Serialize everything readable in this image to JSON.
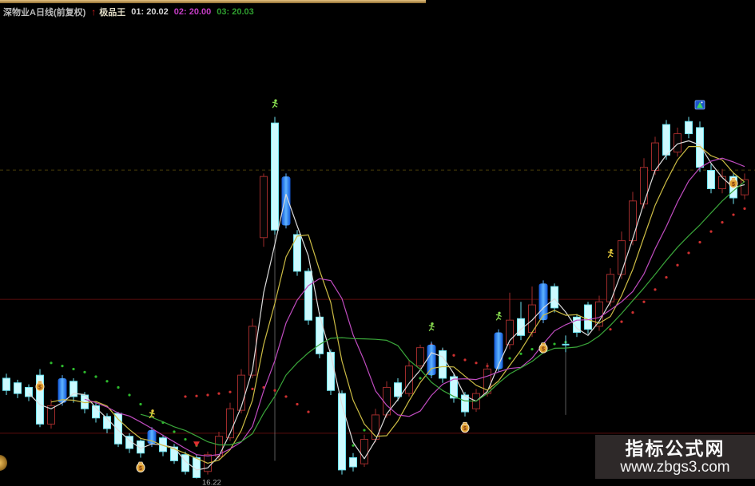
{
  "header": {
    "title": "深物业A日线(前复权)",
    "arrow_icon": "↑",
    "indicator_name": "极品王",
    "params": [
      {
        "label": "01: 20.02",
        "color": "#d6d6d6"
      },
      {
        "label": "02: 20.00",
        "color": "#c43cc4"
      },
      {
        "label": "03: 20.03",
        "color": "#2f9e2f"
      }
    ]
  },
  "watermark": {
    "line1": "指标公式网",
    "line2": "www.zbgs3.com",
    "bg": "#2e2929",
    "text_color": "#fafafa"
  },
  "chart_data": {
    "type": "candlestick",
    "title": "深物业A 日线 K线图 (前复权) 带极品王指标",
    "price_axis": {
      "min": 16.0,
      "max": 28.6,
      "low_label": "16.22"
    },
    "candle_fields": [
      "style",
      "open",
      "close",
      "high",
      "low",
      "icons"
    ],
    "candles": [
      [
        "cyan",
        19.5,
        19.1,
        19.65,
        18.95
      ],
      [
        "cyan",
        19.35,
        19.0,
        19.45,
        18.85
      ],
      [
        "cyan",
        19.2,
        18.9,
        19.3,
        18.75
      ],
      [
        "cyan",
        19.6,
        18.0,
        19.8,
        17.9,
        [
          [
            "moneybag",
            19.25
          ]
        ]
      ],
      [
        "red",
        18.0,
        18.6,
        18.8,
        17.85
      ],
      [
        "blue",
        18.7,
        19.5,
        19.6,
        18.6
      ],
      [
        "cyan",
        19.4,
        18.9,
        19.5,
        18.7
      ],
      [
        "cyan",
        18.95,
        18.5,
        19.05,
        18.35
      ],
      [
        "cyan",
        18.6,
        18.2,
        18.7,
        18.05
      ],
      [
        "cyan",
        18.25,
        17.85,
        18.35,
        17.7
      ],
      [
        "cyan",
        18.35,
        17.35,
        18.4,
        17.25
      ],
      [
        "cyan",
        17.6,
        17.2,
        17.7,
        17.05
      ],
      [
        "cyan",
        17.45,
        17.05,
        17.5,
        16.9,
        [
          [
            "moneybag",
            16.6
          ]
        ]
      ],
      [
        "blue",
        17.35,
        17.8,
        17.9,
        17.25,
        [
          [
            "runner-gold",
            18.25
          ]
        ]
      ],
      [
        "cyan",
        17.55,
        17.1,
        17.65,
        16.95
      ],
      [
        "cyan",
        17.25,
        16.8,
        17.35,
        16.7
      ],
      [
        "cyan",
        17.0,
        16.45,
        17.1,
        16.35
      ],
      [
        "cyan",
        16.9,
        16.25,
        17.0,
        16.22,
        [
          [
            "arrow-red",
            17.3
          ]
        ]
      ],
      [
        "red",
        16.45,
        17.0,
        17.1,
        16.35
      ],
      [
        "red",
        16.95,
        17.6,
        17.75,
        16.85
      ],
      [
        "red",
        17.55,
        18.5,
        18.7,
        17.45
      ],
      [
        "red",
        18.45,
        19.6,
        19.8,
        18.35
      ],
      [
        "red",
        19.6,
        21.2,
        21.45,
        19.5
      ],
      [
        "red",
        24.1,
        26.1,
        26.2,
        23.8
      ],
      [
        "cyan",
        27.85,
        24.35,
        28.05,
        24.2,
        [
          [
            "runner-green",
            28.4
          ]
        ]
      ],
      [
        "blue",
        24.5,
        26.1,
        26.2,
        24.4
      ],
      [
        "cyan",
        24.2,
        23.0,
        24.35,
        22.85
      ],
      [
        "cyan",
        23.0,
        21.4,
        23.1,
        21.25
      ],
      [
        "cyan",
        21.5,
        20.3,
        21.65,
        20.15
      ],
      [
        "cyan",
        20.35,
        19.1,
        20.45,
        18.95
      ],
      [
        "cyan",
        19.0,
        16.5,
        19.1,
        16.35
      ],
      [
        "cyan",
        16.9,
        16.6,
        17.05,
        16.45
      ],
      [
        "red",
        16.7,
        17.5,
        17.65,
        16.6
      ],
      [
        "red",
        17.5,
        18.3,
        18.5,
        17.4
      ],
      [
        "red",
        18.3,
        19.2,
        19.4,
        18.2
      ],
      [
        "cyan",
        19.35,
        18.9,
        19.5,
        18.75
      ],
      [
        "red",
        19.0,
        19.9,
        20.1,
        18.9
      ],
      [
        "red",
        19.9,
        20.5,
        20.6,
        19.8
      ],
      [
        "blue",
        19.6,
        20.6,
        20.7,
        19.5,
        [
          [
            "runner-green",
            21.1
          ]
        ]
      ],
      [
        "cyan",
        20.4,
        19.5,
        20.5,
        19.35
      ],
      [
        "cyan",
        19.55,
        18.85,
        19.65,
        18.7
      ],
      [
        "cyan",
        18.95,
        18.4,
        19.05,
        18.25,
        [
          [
            "moneybag",
            17.9
          ]
        ]
      ],
      [
        "red",
        18.5,
        19.0,
        19.15,
        18.4
      ],
      [
        "red",
        19.0,
        19.8,
        20.0,
        18.9
      ],
      [
        "blue",
        19.8,
        21.0,
        21.1,
        19.7,
        [
          [
            "runner-green",
            21.45
          ]
        ]
      ],
      [
        "red",
        20.6,
        21.4,
        22.3,
        20.45
      ],
      [
        "cyan",
        21.45,
        20.9,
        22.0,
        20.75
      ],
      [
        "red",
        21.0,
        21.9,
        22.5,
        20.85
      ],
      [
        "blue",
        21.4,
        22.6,
        22.7,
        21.3,
        [
          [
            "moneybag",
            20.5
          ]
        ]
      ],
      [
        "cyan",
        22.5,
        21.8,
        22.6,
        21.65
      ],
      [
        "doji",
        20.6,
        20.6,
        20.9,
        20.35
      ],
      [
        "cyan",
        21.5,
        21.0,
        21.6,
        20.85
      ],
      [
        "cyan",
        21.9,
        21.1,
        22.0,
        20.95
      ],
      [
        "red",
        21.2,
        22.0,
        22.2,
        21.05
      ],
      [
        "red",
        22.0,
        22.9,
        23.1,
        21.85,
        [
          [
            "runner-gold",
            23.5
          ]
        ]
      ],
      [
        "red",
        22.9,
        24.0,
        24.3,
        22.75
      ],
      [
        "red",
        24.0,
        25.3,
        25.6,
        23.85
      ],
      [
        "red",
        25.2,
        26.4,
        26.7,
        25.05
      ],
      [
        "red",
        26.3,
        27.2,
        27.4,
        26.15
      ],
      [
        "cyan",
        27.8,
        26.8,
        27.95,
        26.65
      ],
      [
        "red",
        26.9,
        27.5,
        27.7,
        26.75
      ],
      [
        "cyan",
        27.9,
        27.5,
        28.05,
        27.35
      ],
      [
        "cyan",
        27.7,
        26.4,
        27.9,
        26.25,
        [
          [
            "flag-box",
            28.3
          ]
        ]
      ],
      [
        "cyan",
        26.3,
        25.7,
        26.5,
        25.55
      ],
      [
        "red",
        25.7,
        26.1,
        26.35,
        25.55
      ],
      [
        "cyan",
        26.1,
        25.4,
        26.2,
        25.2,
        [
          [
            "moneybag",
            25.9
          ]
        ]
      ],
      [
        "red",
        25.5,
        26.0,
        26.2,
        25.35
      ]
    ],
    "ma_lines": [
      {
        "name": "MA3",
        "period": 3,
        "color": "#dcdcdc"
      },
      {
        "name": "MA5",
        "period": 5,
        "color": "#cdbd45"
      },
      {
        "name": "MA8",
        "period": 8,
        "color": "#c04cc0"
      },
      {
        "name": "MA13",
        "period": 13,
        "color": "#3aa63a"
      }
    ],
    "dot_runs": [
      {
        "color": "green",
        "start": 4,
        "prices": [
          20.0,
          19.9,
          19.8,
          19.7,
          19.55,
          19.4,
          19.2,
          18.95,
          18.65,
          18.35,
          18.05,
          17.75,
          17.5,
          17.3
        ]
      },
      {
        "color": "red",
        "start": 16,
        "prices": [
          18.9,
          18.92,
          18.95,
          19.0,
          19.05,
          19.1,
          19.15,
          19.2,
          19.1,
          18.9,
          18.65,
          18.4
        ]
      },
      {
        "color": "green",
        "start": 30,
        "prices": [
          16.8,
          17.3,
          17.8,
          18.25,
          18.65,
          19.0,
          19.3,
          19.5,
          19.62
        ]
      },
      {
        "color": "red",
        "start": 38,
        "prices": [
          20.6,
          20.4,
          20.25,
          20.1,
          20.0,
          19.9,
          19.85
        ]
      },
      {
        "color": "green",
        "start": 44,
        "prices": [
          19.95,
          20.15,
          20.3,
          20.45,
          20.55,
          20.62,
          20.68
        ]
      },
      {
        "color": "red",
        "start": 54,
        "prices": [
          21.1,
          21.35,
          21.65,
          22.0,
          22.4,
          22.8,
          23.2,
          23.6,
          23.95,
          24.3,
          24.6,
          24.85,
          25.05
        ]
      }
    ],
    "grid_lines": [
      {
        "price": 26.31,
        "color": "#4a3e08",
        "dashed": true
      },
      {
        "price": 22.08,
        "color": "#5c0d0d",
        "dashed": false
      },
      {
        "price": 17.7,
        "color": "#5c0d0d",
        "dashed": false
      }
    ],
    "guide_lines": [
      {
        "index": 24,
        "from": 24.2,
        "to": 16.8
      },
      {
        "index": 50,
        "from": 20.35,
        "to": 18.3
      }
    ],
    "low_marker": {
      "index": 17,
      "text": "16.22",
      "color": "#a8a8a8"
    },
    "palette": {
      "cyan_stroke": "#6fe4f2",
      "cyan_fill": "#ccfaff",
      "red_stroke": "#9e2b2b",
      "blue_edge": "#0f55d8",
      "blue_center": "#5fb4ff",
      "dot_red": "#cf3030",
      "dot_green": "#2db92d",
      "moneybag_fill": "#dfa02f",
      "moneybag_stroke": "#f7ecd2",
      "runner_gold": "#e6c93c",
      "runner_green": "#86d94e",
      "arrow_red": "#e03030",
      "flag_box_blue": "#1d55cc",
      "flag_box_green": "#3fd45f",
      "guide": "#8a8a8a"
    }
  }
}
